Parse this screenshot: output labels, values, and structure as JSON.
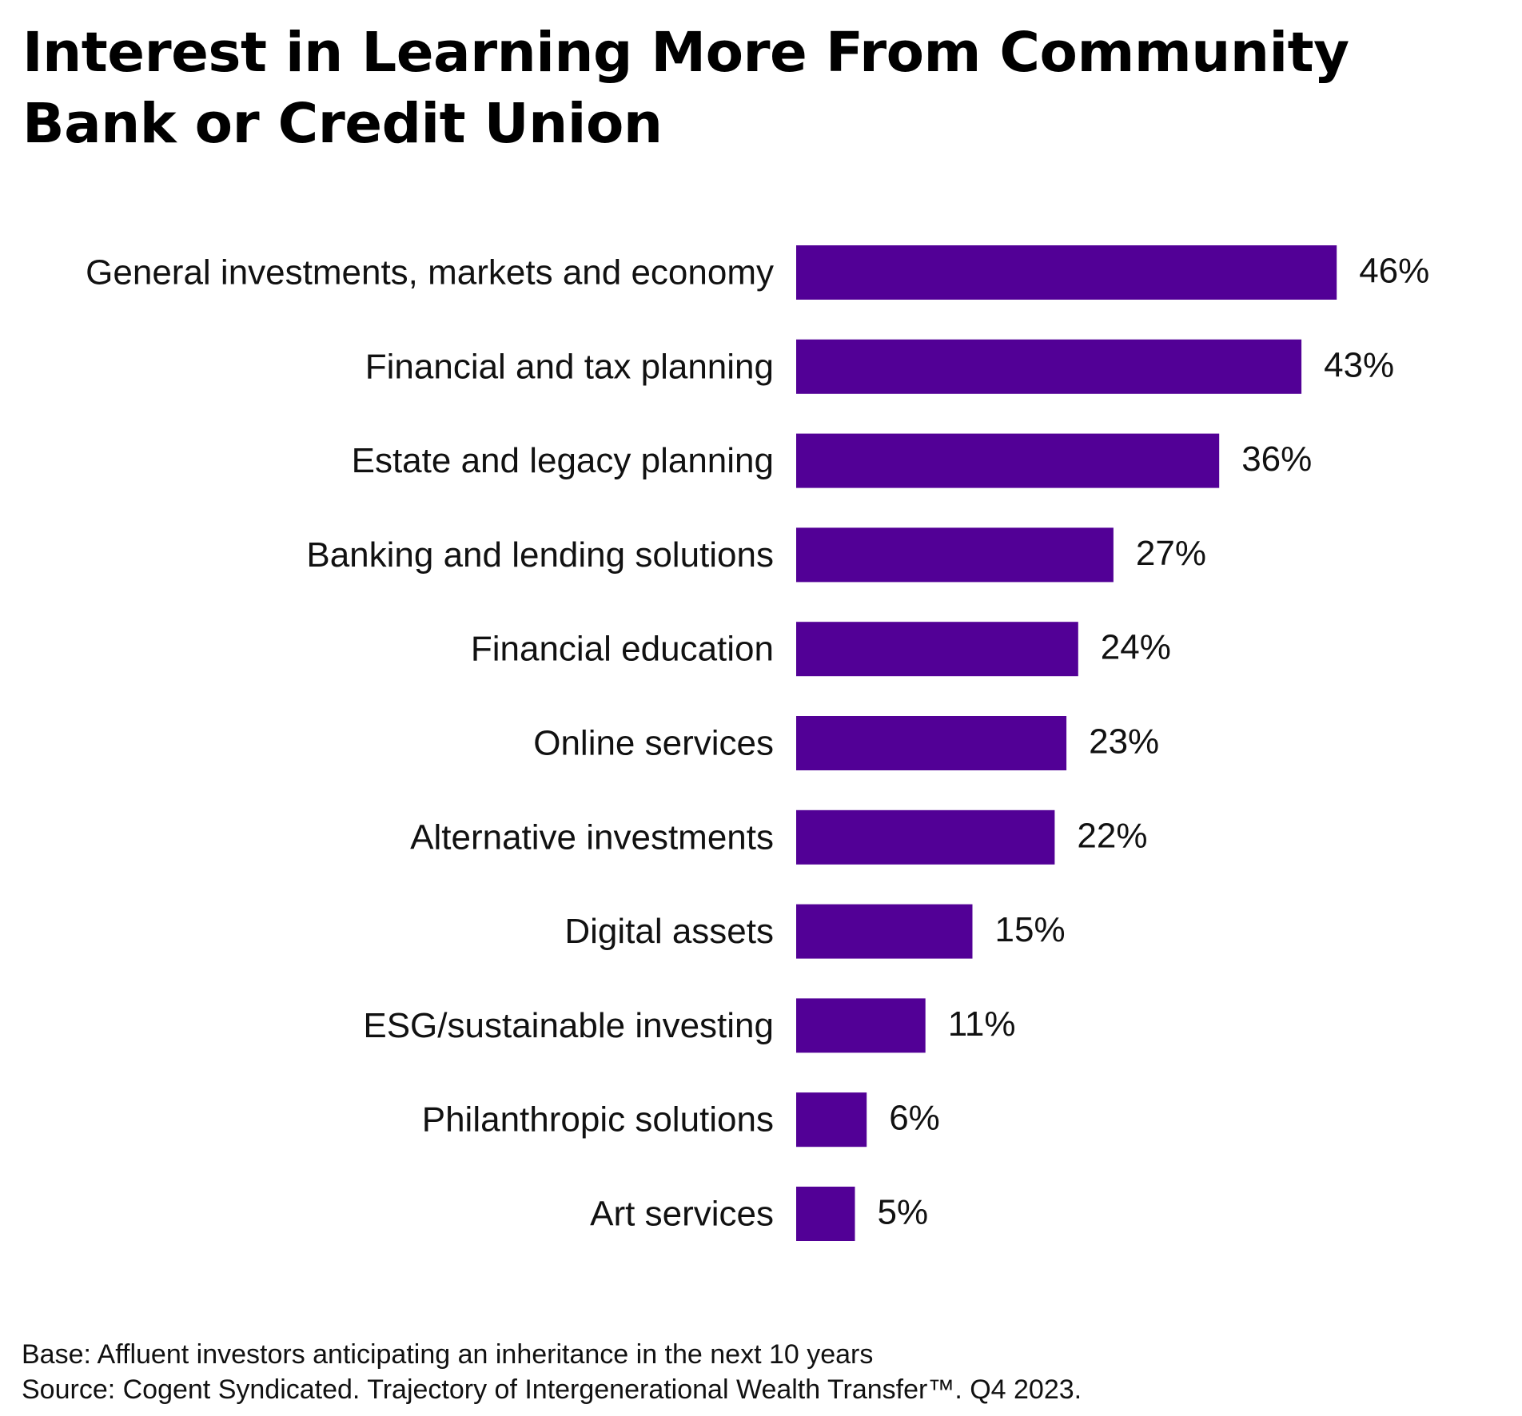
{
  "title": "Interest in Learning More From Community Bank or Credit Union",
  "footnotes": {
    "base": "Base: Affluent investors anticipating an inheritance in the next 10 years",
    "source": "Source: Cogent Syndicated. Trajectory of Intergenerational Wealth Transfer™. Q4 2023."
  },
  "colors": {
    "bar": "#520096"
  },
  "chart_data": {
    "type": "bar",
    "orientation": "horizontal",
    "title": "Interest in Learning More From Community Bank or Credit Union",
    "categories": [
      "General investments, markets and economy",
      "Financial and tax planning",
      "Estate and legacy planning",
      "Banking and lending solutions",
      "Financial education",
      "Online services",
      "Alternative investments",
      "Digital assets",
      "ESG/sustainable investing",
      "Philanthropic solutions",
      "Art services"
    ],
    "values": [
      46,
      43,
      36,
      27,
      24,
      23,
      22,
      15,
      11,
      6,
      5
    ],
    "value_labels": [
      "46%",
      "43%",
      "36%",
      "27%",
      "24%",
      "23%",
      "22%",
      "15%",
      "11%",
      "6%",
      "5%"
    ],
    "unit": "%",
    "xlabel": "",
    "ylabel": "",
    "grid": false,
    "legend": "none"
  }
}
